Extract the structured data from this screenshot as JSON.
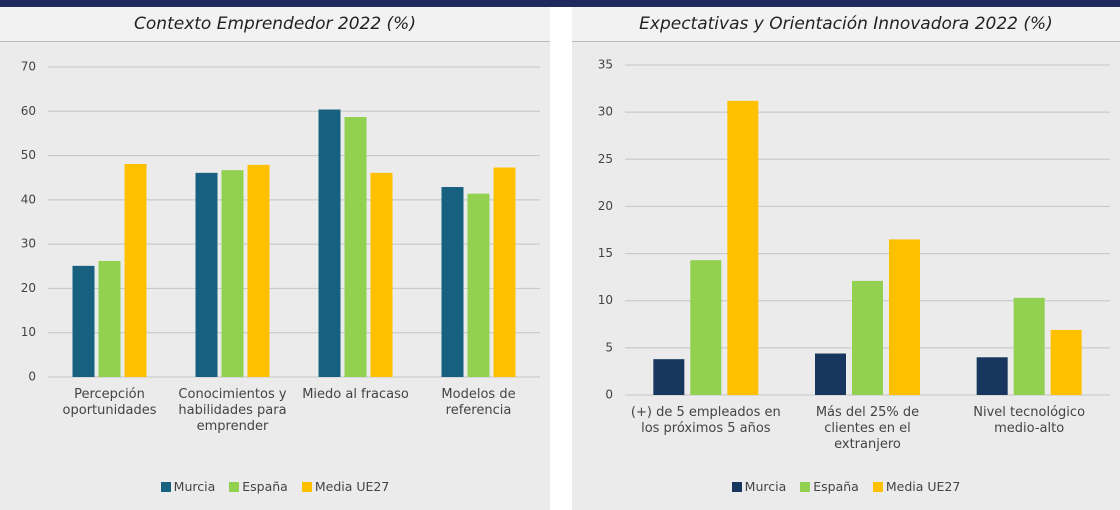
{
  "chart_data": [
    {
      "type": "bar",
      "title": "Contexto Emprendedor 2022 (%)",
      "categories": [
        "Percepción oportunidades",
        "Conocimientos y habilidades para emprender",
        "Miedo al fracaso",
        "Modelos de referencia"
      ],
      "series": [
        {
          "name": "Murcia",
          "color": "#17607f",
          "values": [
            25.1,
            46.1,
            60.4,
            42.9
          ]
        },
        {
          "name": "España",
          "color": "#92d050",
          "values": [
            26.2,
            46.7,
            58.7,
            41.4
          ]
        },
        {
          "name": "Media UE27",
          "color": "#ffc000",
          "values": [
            48.1,
            47.9,
            46.1,
            47.3
          ]
        }
      ],
      "ylim": [
        0,
        70
      ],
      "yticks": [
        0,
        10,
        20,
        30,
        40,
        50,
        60,
        70
      ],
      "grid": true
    },
    {
      "type": "bar",
      "title": "Expectativas y Orientación Innovadora 2022 (%)",
      "categories": [
        "(+) de 5 empleados en los próximos 5 años",
        "Más del 25% de clientes en el extranjero",
        "Nivel tecnológico medio-alto"
      ],
      "series": [
        {
          "name": "Murcia",
          "color": "#17375e",
          "values": [
            3.8,
            4.4,
            4.0
          ]
        },
        {
          "name": "España",
          "color": "#92d050",
          "values": [
            14.3,
            12.1,
            10.3
          ]
        },
        {
          "name": "Media UE27",
          "color": "#ffc000",
          "values": [
            31.2,
            16.5,
            6.9
          ]
        }
      ],
      "ylim": [
        0,
        35
      ],
      "yticks": [
        0,
        5,
        10,
        15,
        20,
        25,
        30,
        35
      ],
      "grid": true
    }
  ]
}
